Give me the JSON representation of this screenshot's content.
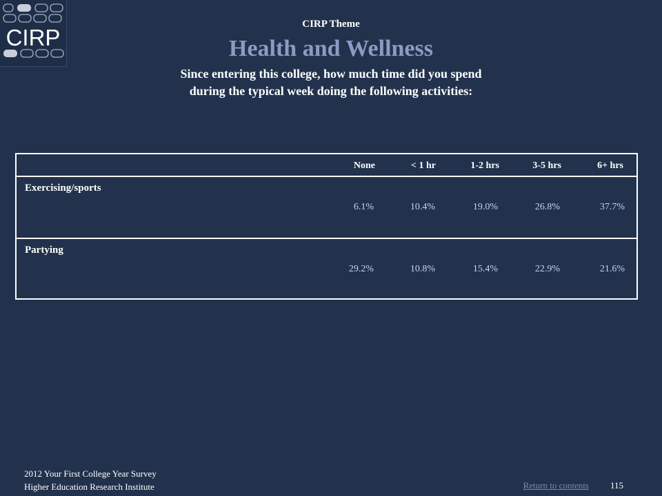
{
  "logo": {
    "text": "CIRP"
  },
  "header": {
    "theme": "CIRP Theme",
    "title": "Health and Wellness",
    "question_line1": "Since entering this college, how much time did you spend",
    "question_line2": "during the typical week doing the following activities:"
  },
  "table": {
    "columns": [
      "None",
      "< 1 hr",
      "1-2 hrs",
      "3-5 hrs",
      "6+ hrs"
    ],
    "rows": [
      {
        "label": "Exercising/sports",
        "values": [
          "6.1%",
          "10.4%",
          "19.0%",
          "26.8%",
          "37.7%"
        ]
      },
      {
        "label": "Partying",
        "values": [
          "29.2%",
          "10.8%",
          "15.4%",
          "22.9%",
          "21.6%"
        ]
      }
    ]
  },
  "footer": {
    "survey": "2012 Your First College Year Survey",
    "institute": "Higher Education Research Institute",
    "return_link": "Return to contents",
    "page_number": "115"
  }
}
